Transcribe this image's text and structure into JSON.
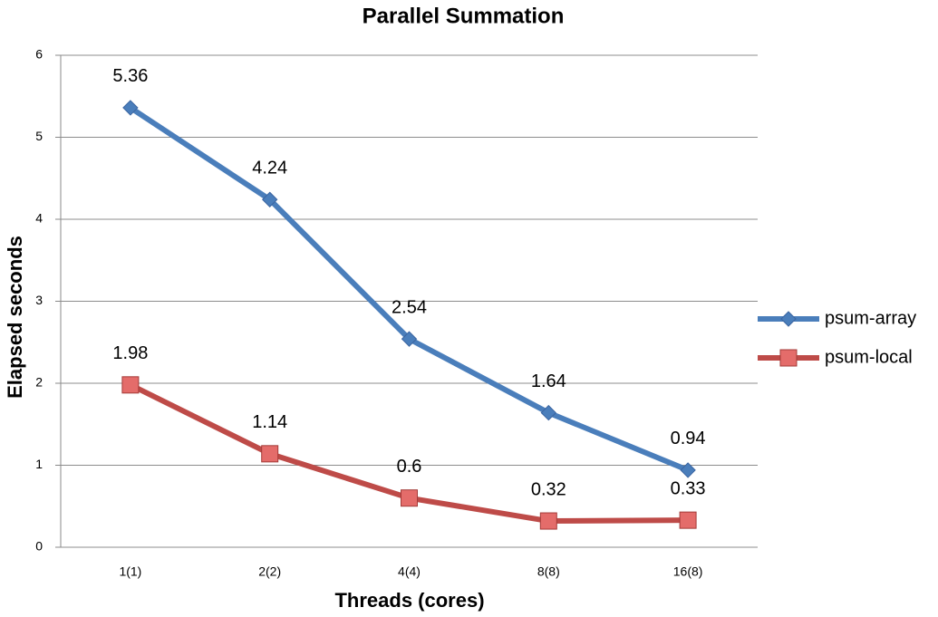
{
  "chart_data": {
    "type": "line",
    "title": "Parallel Summation",
    "x_label": "Threads (cores)",
    "y_label": "Elapsed seconds",
    "categories": [
      "1(1)",
      "2(2)",
      "4(4)",
      "8(8)",
      "16(8)"
    ],
    "series": [
      {
        "name": "psum-array",
        "color": "#4a7ebb",
        "marker": "diamond",
        "values": [
          5.36,
          4.24,
          2.54,
          1.64,
          0.94
        ]
      },
      {
        "name": "psum-local",
        "color": "#be4b48",
        "marker": "square",
        "values": [
          1.98,
          1.14,
          0.6,
          0.32,
          0.33
        ]
      }
    ],
    "ylim": [
      0,
      6
    ],
    "yticks": [
      0,
      1,
      2,
      3,
      4,
      5,
      6
    ],
    "grid": true,
    "legend": "right"
  }
}
